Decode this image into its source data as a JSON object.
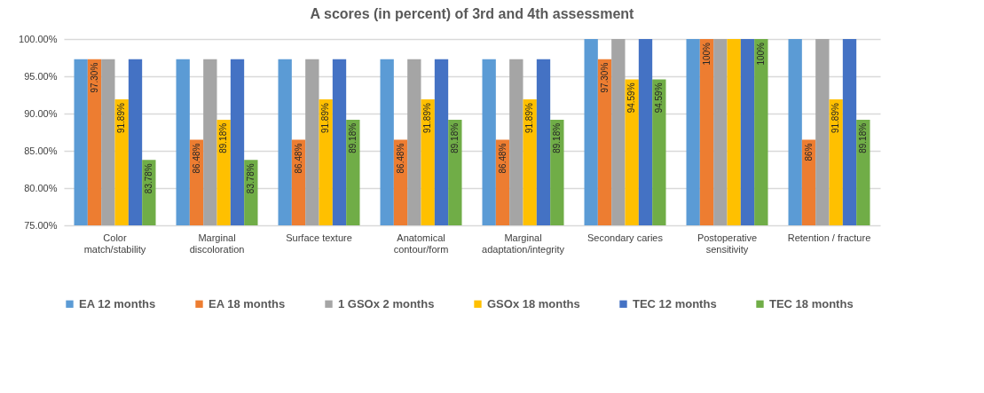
{
  "chart_data": {
    "type": "bar",
    "title": "A scores (in percent) of 3rd and 4th assessment",
    "categories": [
      "Color match/stability",
      "Marginal discoloration",
      "Surface texture",
      "Anatomical contour/form",
      "Marginal adaptation/integrity",
      "Secondary caries",
      "Postoperative sensitivity",
      "Retention / fracture"
    ],
    "series": [
      {
        "name": "EA 12 months",
        "color": "#5b9bd5",
        "values": [
          97.3,
          97.3,
          97.3,
          97.3,
          97.3,
          100,
          100,
          100
        ]
      },
      {
        "name": "EA 18 months",
        "color": "#ed7d31",
        "values": [
          97.3,
          86.48,
          86.48,
          86.48,
          86.48,
          97.3,
          100,
          86.48
        ],
        "value_labels": [
          "97.30%",
          "86.48%",
          "86.48%",
          "86.48%",
          "86.48%",
          "97.30%",
          "100%",
          "86%"
        ]
      },
      {
        "name": "1 GSOx 2 months",
        "color": "#a5a5a5",
        "values": [
          97.3,
          97.3,
          97.3,
          97.3,
          97.3,
          100,
          100,
          100
        ]
      },
      {
        "name": "GSOx 18 months",
        "color": "#ffc000",
        "values": [
          91.89,
          89.18,
          91.89,
          91.89,
          91.89,
          94.59,
          100,
          91.89
        ],
        "value_labels": [
          "91.89%",
          "89.18%",
          "91.89%",
          "91.89%",
          "91.89%",
          "94.59%",
          null,
          "91.89%"
        ]
      },
      {
        "name": "TEC 12 months",
        "color": "#4472c4",
        "values": [
          97.3,
          97.3,
          97.3,
          97.3,
          97.3,
          100,
          100,
          100
        ]
      },
      {
        "name": "TEC 18 months",
        "color": "#70ad47",
        "values": [
          83.78,
          83.78,
          89.18,
          89.18,
          89.18,
          94.59,
          100,
          89.18
        ],
        "value_labels": [
          "83.78%",
          "83.78%",
          "89.18%",
          "89.18%",
          "89.18%",
          "94.59%",
          "100%",
          "89.18%"
        ]
      }
    ],
    "ylim": [
      75,
      100
    ],
    "yticks": [
      {
        "value": 75,
        "label": "75.00%"
      },
      {
        "value": 80,
        "label": "80.00%"
      },
      {
        "value": 85,
        "label": "85.00%"
      },
      {
        "value": 90,
        "label": "90.00%"
      },
      {
        "value": 95,
        "label": "95.00%"
      },
      {
        "value": 100,
        "label": "100.00%"
      }
    ],
    "grid": "y",
    "legend": "bottom"
  }
}
